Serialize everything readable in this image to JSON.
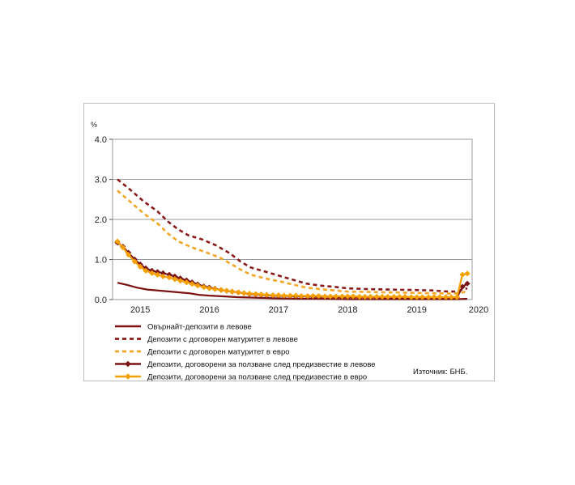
{
  "chart_data": {
    "type": "line",
    "y_unit_label": "%",
    "ylim": [
      0,
      4.0
    ],
    "y_ticks": [
      "0.0",
      "1.0",
      "2.0",
      "3.0",
      "4.0"
    ],
    "x_tick_labels": [
      "2015",
      "2016",
      "2017",
      "2018",
      "2019",
      "2020"
    ],
    "x_range": [
      2014.6,
      2019.8
    ],
    "grid": true,
    "legend_position": "bottom",
    "source": "Източник: БНБ.",
    "series": [
      {
        "name": "Овърнайт-депозити в левове",
        "color": "#7b1111",
        "style": "solid",
        "points": [
          [
            2014.67,
            0.42
          ],
          [
            2014.8,
            0.37
          ],
          [
            2014.95,
            0.3
          ],
          [
            2015.1,
            0.25
          ],
          [
            2015.3,
            0.22
          ],
          [
            2015.5,
            0.19
          ],
          [
            2015.7,
            0.16
          ],
          [
            2015.85,
            0.12
          ],
          [
            2016.0,
            0.1
          ],
          [
            2016.2,
            0.08
          ],
          [
            2016.4,
            0.06
          ],
          [
            2016.6,
            0.05
          ],
          [
            2016.8,
            0.04
          ],
          [
            2017.0,
            0.03
          ],
          [
            2017.3,
            0.02
          ],
          [
            2017.6,
            0.02
          ],
          [
            2018.0,
            0.01
          ],
          [
            2018.5,
            0.01
          ],
          [
            2019.0,
            0.01
          ],
          [
            2019.4,
            0.01
          ],
          [
            2019.6,
            0.01
          ],
          [
            2019.73,
            0.02
          ]
        ]
      },
      {
        "name": "Депозити с договорен матуритет в левове",
        "color": "#8b1a1a",
        "style": "dashed",
        "points": [
          [
            2014.67,
            3.0
          ],
          [
            2014.85,
            2.75
          ],
          [
            2015.05,
            2.45
          ],
          [
            2015.25,
            2.2
          ],
          [
            2015.4,
            1.95
          ],
          [
            2015.55,
            1.75
          ],
          [
            2015.7,
            1.6
          ],
          [
            2015.9,
            1.5
          ],
          [
            2016.1,
            1.35
          ],
          [
            2016.3,
            1.15
          ],
          [
            2016.45,
            0.95
          ],
          [
            2016.6,
            0.8
          ],
          [
            2016.8,
            0.7
          ],
          [
            2017.0,
            0.6
          ],
          [
            2017.2,
            0.5
          ],
          [
            2017.4,
            0.4
          ],
          [
            2017.6,
            0.35
          ],
          [
            2017.8,
            0.32
          ],
          [
            2018.0,
            0.28
          ],
          [
            2018.3,
            0.26
          ],
          [
            2018.6,
            0.25
          ],
          [
            2018.9,
            0.24
          ],
          [
            2019.2,
            0.23
          ],
          [
            2019.45,
            0.2
          ],
          [
            2019.55,
            0.2
          ],
          [
            2019.73,
            0.28
          ]
        ]
      },
      {
        "name": "Депозити с договорен матуритет в евро",
        "color": "#f5a524",
        "style": "dashed",
        "points": [
          [
            2014.67,
            2.72
          ],
          [
            2014.85,
            2.45
          ],
          [
            2015.05,
            2.15
          ],
          [
            2015.25,
            1.9
          ],
          [
            2015.4,
            1.65
          ],
          [
            2015.55,
            1.45
          ],
          [
            2015.75,
            1.3
          ],
          [
            2015.95,
            1.18
          ],
          [
            2016.15,
            1.05
          ],
          [
            2016.3,
            0.9
          ],
          [
            2016.45,
            0.75
          ],
          [
            2016.6,
            0.62
          ],
          [
            2016.8,
            0.53
          ],
          [
            2017.0,
            0.46
          ],
          [
            2017.2,
            0.38
          ],
          [
            2017.4,
            0.3
          ],
          [
            2017.6,
            0.26
          ],
          [
            2017.8,
            0.23
          ],
          [
            2018.0,
            0.2
          ],
          [
            2018.3,
            0.19
          ],
          [
            2018.6,
            0.18
          ],
          [
            2018.9,
            0.17
          ],
          [
            2019.2,
            0.16
          ],
          [
            2019.45,
            0.15
          ],
          [
            2019.55,
            0.15
          ],
          [
            2019.73,
            0.2
          ]
        ]
      },
      {
        "name": "Депозити, договорени за ползване след предизвестие в левове",
        "color": "#7a1414",
        "style": "solid-diamond",
        "points": [
          [
            2014.67,
            1.42
          ],
          [
            2014.75,
            1.32
          ],
          [
            2014.83,
            1.17
          ],
          [
            2014.92,
            1.0
          ],
          [
            2015.0,
            0.88
          ],
          [
            2015.08,
            0.78
          ],
          [
            2015.17,
            0.72
          ],
          [
            2015.25,
            0.69
          ],
          [
            2015.33,
            0.66
          ],
          [
            2015.42,
            0.62
          ],
          [
            2015.5,
            0.58
          ],
          [
            2015.58,
            0.53
          ],
          [
            2015.67,
            0.48
          ],
          [
            2015.75,
            0.43
          ],
          [
            2015.83,
            0.38
          ],
          [
            2015.92,
            0.33
          ],
          [
            2016.0,
            0.3
          ],
          [
            2016.08,
            0.27
          ],
          [
            2016.17,
            0.24
          ],
          [
            2016.25,
            0.22
          ],
          [
            2016.33,
            0.2
          ],
          [
            2016.42,
            0.18
          ],
          [
            2016.5,
            0.16
          ],
          [
            2016.58,
            0.14
          ],
          [
            2016.67,
            0.13
          ],
          [
            2016.75,
            0.12
          ],
          [
            2016.83,
            0.11
          ],
          [
            2016.92,
            0.1
          ],
          [
            2017.0,
            0.1
          ],
          [
            2017.08,
            0.09
          ],
          [
            2017.17,
            0.09
          ],
          [
            2017.25,
            0.08
          ],
          [
            2017.33,
            0.08
          ],
          [
            2017.42,
            0.08
          ],
          [
            2017.5,
            0.07
          ],
          [
            2017.58,
            0.07
          ],
          [
            2017.67,
            0.07
          ],
          [
            2017.75,
            0.07
          ],
          [
            2017.83,
            0.06
          ],
          [
            2017.92,
            0.06
          ],
          [
            2018.0,
            0.06
          ],
          [
            2018.08,
            0.06
          ],
          [
            2018.17,
            0.06
          ],
          [
            2018.25,
            0.06
          ],
          [
            2018.33,
            0.06
          ],
          [
            2018.42,
            0.06
          ],
          [
            2018.5,
            0.05
          ],
          [
            2018.58,
            0.05
          ],
          [
            2018.67,
            0.05
          ],
          [
            2018.75,
            0.05
          ],
          [
            2018.83,
            0.05
          ],
          [
            2018.92,
            0.05
          ],
          [
            2019.0,
            0.05
          ],
          [
            2019.08,
            0.05
          ],
          [
            2019.17,
            0.05
          ],
          [
            2019.25,
            0.05
          ],
          [
            2019.33,
            0.05
          ],
          [
            2019.42,
            0.05
          ],
          [
            2019.5,
            0.05
          ],
          [
            2019.58,
            0.05
          ],
          [
            2019.66,
            0.32
          ],
          [
            2019.73,
            0.4
          ]
        ]
      },
      {
        "name": "Депозити, договорени за ползване след предизвестие в евро",
        "color": "#f5a000",
        "style": "solid-diamond",
        "points": [
          [
            2014.67,
            1.45
          ],
          [
            2014.75,
            1.3
          ],
          [
            2014.83,
            1.12
          ],
          [
            2014.92,
            0.95
          ],
          [
            2015.0,
            0.82
          ],
          [
            2015.08,
            0.72
          ],
          [
            2015.17,
            0.66
          ],
          [
            2015.25,
            0.62
          ],
          [
            2015.33,
            0.58
          ],
          [
            2015.42,
            0.55
          ],
          [
            2015.5,
            0.51
          ],
          [
            2015.58,
            0.47
          ],
          [
            2015.67,
            0.43
          ],
          [
            2015.75,
            0.39
          ],
          [
            2015.83,
            0.35
          ],
          [
            2015.92,
            0.31
          ],
          [
            2016.0,
            0.28
          ],
          [
            2016.08,
            0.26
          ],
          [
            2016.17,
            0.24
          ],
          [
            2016.25,
            0.22
          ],
          [
            2016.33,
            0.2
          ],
          [
            2016.42,
            0.18
          ],
          [
            2016.5,
            0.16
          ],
          [
            2016.58,
            0.15
          ],
          [
            2016.67,
            0.14
          ],
          [
            2016.75,
            0.13
          ],
          [
            2016.83,
            0.12
          ],
          [
            2016.92,
            0.11
          ],
          [
            2017.0,
            0.11
          ],
          [
            2017.08,
            0.1
          ],
          [
            2017.17,
            0.1
          ],
          [
            2017.25,
            0.1
          ],
          [
            2017.33,
            0.09
          ],
          [
            2017.42,
            0.09
          ],
          [
            2017.5,
            0.09
          ],
          [
            2017.58,
            0.09
          ],
          [
            2017.67,
            0.08
          ],
          [
            2017.75,
            0.08
          ],
          [
            2017.83,
            0.08
          ],
          [
            2017.92,
            0.08
          ],
          [
            2018.0,
            0.08
          ],
          [
            2018.08,
            0.08
          ],
          [
            2018.17,
            0.07
          ],
          [
            2018.25,
            0.07
          ],
          [
            2018.33,
            0.07
          ],
          [
            2018.42,
            0.07
          ],
          [
            2018.5,
            0.07
          ],
          [
            2018.58,
            0.07
          ],
          [
            2018.67,
            0.07
          ],
          [
            2018.75,
            0.07
          ],
          [
            2018.83,
            0.07
          ],
          [
            2018.92,
            0.06
          ],
          [
            2019.0,
            0.06
          ],
          [
            2019.08,
            0.06
          ],
          [
            2019.17,
            0.06
          ],
          [
            2019.25,
            0.06
          ],
          [
            2019.33,
            0.06
          ],
          [
            2019.42,
            0.06
          ],
          [
            2019.5,
            0.06
          ],
          [
            2019.58,
            0.06
          ],
          [
            2019.66,
            0.62
          ],
          [
            2019.73,
            0.65
          ]
        ]
      }
    ]
  }
}
